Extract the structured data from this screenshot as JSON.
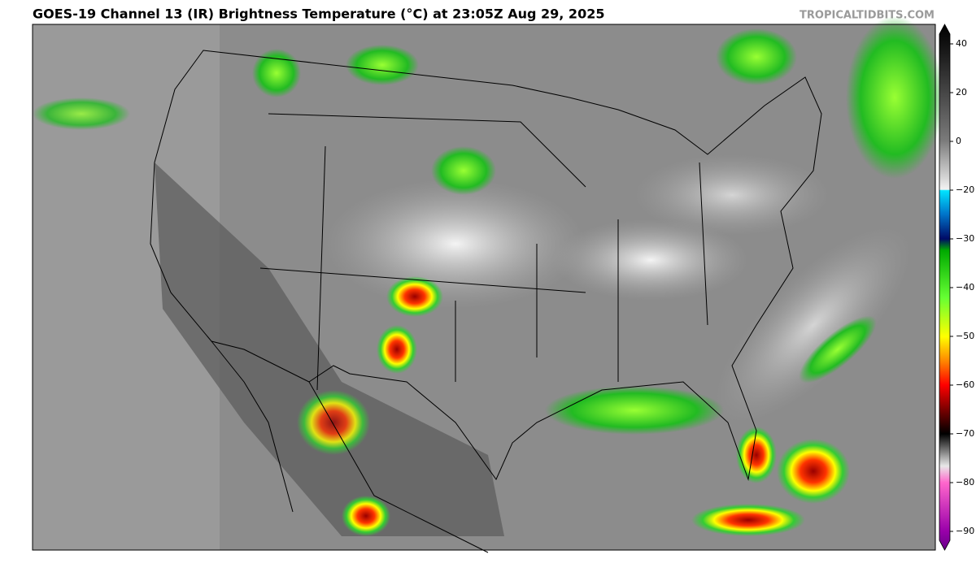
{
  "header": {
    "title": "GOES-19 Channel 13 (IR) Brightness Temperature (°C) at 23:05Z Aug 29, 2025",
    "credit": "TROPICALTIDBITS.COM"
  },
  "colorbar": {
    "ticks": [
      40,
      20,
      0,
      {
        "value": -20,
        "label": "−20"
      },
      {
        "value": -30,
        "label": "−30"
      },
      {
        "value": -40,
        "label": "−40"
      },
      {
        "value": -50,
        "label": "−50"
      },
      {
        "value": -60,
        "label": "−60"
      },
      {
        "value": -70,
        "label": "−70"
      },
      {
        "value": -80,
        "label": "−80"
      },
      {
        "value": -90,
        "label": "−90"
      }
    ]
  }
}
